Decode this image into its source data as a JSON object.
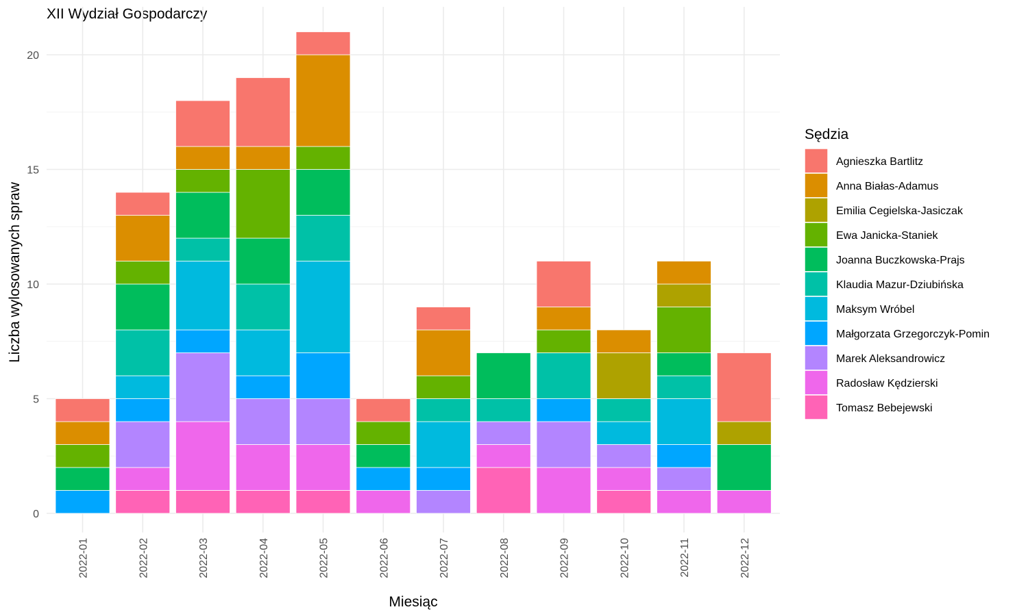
{
  "chart_data": {
    "type": "bar",
    "stacked": true,
    "title": "XII Wydział Gospodarczy",
    "xlabel": "Miesiąc",
    "ylabel": "Liczba wylosowanych spraw",
    "ylim": [
      0,
      21
    ],
    "yticks": [
      0,
      5,
      10,
      15,
      20
    ],
    "grid": true,
    "legend_title": "Sędzia",
    "legend_position": "right",
    "categories": [
      "2022-01",
      "2022-02",
      "2022-03",
      "2022-04",
      "2022-05",
      "2022-06",
      "2022-07",
      "2022-08",
      "2022-09",
      "2022-10",
      "2022-11",
      "2022-12"
    ],
    "series": [
      {
        "name": "Agnieszka Bartlitz",
        "color": "#F8766D",
        "values": [
          1,
          1,
          2,
          3,
          1,
          1,
          1,
          0,
          2,
          0,
          0,
          3
        ]
      },
      {
        "name": "Anna Białas-Adamus",
        "color": "#DB8E00",
        "values": [
          1,
          2,
          1,
          1,
          4,
          0,
          2,
          0,
          1,
          1,
          1,
          0
        ]
      },
      {
        "name": "Emilia Cegielska-Jasiczak",
        "color": "#AEA200",
        "values": [
          0,
          0,
          0,
          0,
          0,
          0,
          0,
          0,
          0,
          2,
          1,
          1
        ]
      },
      {
        "name": "Ewa Janicka-Staniek",
        "color": "#64B200",
        "values": [
          1,
          1,
          1,
          3,
          1,
          1,
          1,
          0,
          1,
          0,
          2,
          0
        ]
      },
      {
        "name": "Joanna Buczkowska-Prajs",
        "color": "#00BD5C",
        "values": [
          1,
          2,
          2,
          2,
          2,
          1,
          0,
          2,
          0,
          0,
          1,
          2
        ]
      },
      {
        "name": "Klaudia Mazur-Dziubińska",
        "color": "#00C1A7",
        "values": [
          0,
          2,
          1,
          2,
          2,
          0,
          1,
          1,
          2,
          1,
          1,
          0
        ]
      },
      {
        "name": "Maksym Wróbel",
        "color": "#00BADE",
        "values": [
          0,
          1,
          3,
          2,
          4,
          0,
          2,
          0,
          0,
          1,
          2,
          0
        ]
      },
      {
        "name": "Małgorzata Grzegorczyk-Pomin",
        "color": "#00A6FF",
        "values": [
          1,
          1,
          1,
          1,
          2,
          1,
          1,
          0,
          1,
          0,
          1,
          0
        ]
      },
      {
        "name": "Marek Aleksandrowicz",
        "color": "#B385FF",
        "values": [
          0,
          2,
          3,
          2,
          2,
          0,
          1,
          1,
          2,
          1,
          1,
          0
        ]
      },
      {
        "name": "Radosław Kędzierski",
        "color": "#EF67EB",
        "values": [
          0,
          1,
          3,
          2,
          2,
          1,
          0,
          1,
          2,
          1,
          1,
          1
        ]
      },
      {
        "name": "Tomasz Bebejewski",
        "color": "#FF63B6",
        "values": [
          0,
          1,
          1,
          1,
          1,
          0,
          0,
          2,
          0,
          1,
          0,
          0
        ]
      }
    ]
  }
}
